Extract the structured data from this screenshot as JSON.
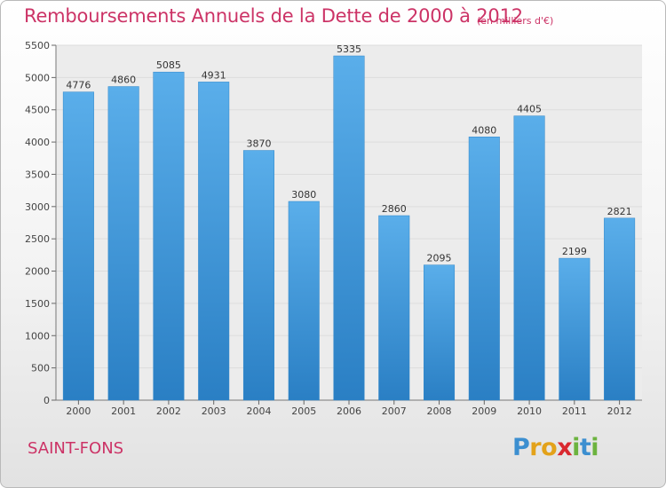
{
  "chart_data": {
    "type": "bar",
    "title": "Remboursements Annuels de la Dette de 2000 à 2012",
    "subtitle": "(en milliers d'€)",
    "categories": [
      "2000",
      "2001",
      "2002",
      "2003",
      "2004",
      "2005",
      "2006",
      "2007",
      "2008",
      "2009",
      "2010",
      "2011",
      "2012"
    ],
    "values": [
      4776,
      4860,
      5085,
      4931,
      3870,
      3080,
      5335,
      2860,
      2095,
      4080,
      4405,
      2199,
      2821
    ],
    "ylim": [
      0,
      5500
    ],
    "yticks": [
      0,
      500,
      1000,
      1500,
      2000,
      2500,
      3000,
      3500,
      4000,
      4500,
      5000,
      5500
    ],
    "grid": true,
    "bar_color_top": "#5aaeea",
    "bar_color_bottom": "#2a7fc4"
  },
  "footer": {
    "place": "SAINT-FONS",
    "brand_letters": [
      {
        "ch": "P",
        "color": "#3c8fd0"
      },
      {
        "ch": "r",
        "color": "#e3a21a"
      },
      {
        "ch": "o",
        "color": "#e3a21a"
      },
      {
        "ch": "x",
        "color": "#d9282f"
      },
      {
        "ch": "i",
        "color": "#6cb33f"
      },
      {
        "ch": "t",
        "color": "#3c8fd0"
      },
      {
        "ch": "i",
        "color": "#6cb33f"
      }
    ]
  },
  "colors": {
    "title": "#cc3366",
    "grid": "#dddddd"
  }
}
